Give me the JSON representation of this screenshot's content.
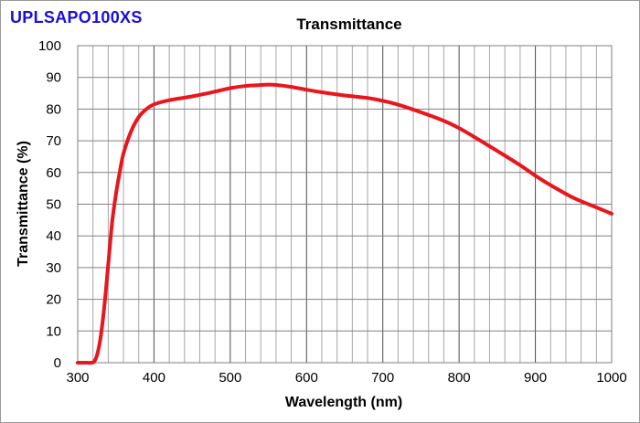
{
  "product": {
    "name": "UPLSAPO100XS",
    "color": "#1a0fd9"
  },
  "chart_data": {
    "type": "line",
    "title": "Transmittance",
    "xlabel": "Wavelength (nm)",
    "ylabel": "Transmittance (%)",
    "xlim": [
      300,
      1000
    ],
    "ylim": [
      0,
      100
    ],
    "x_ticks": [
      300,
      400,
      500,
      600,
      700,
      800,
      900,
      1000
    ],
    "y_ticks": [
      0,
      10,
      20,
      30,
      40,
      50,
      60,
      70,
      80,
      90,
      100
    ],
    "x_minor_step": 20,
    "y_minor_step": 10,
    "grid": true,
    "series": [
      {
        "name": "Transmittance",
        "color": "#e8161d",
        "x": [
          300,
          312,
          318,
          322,
          326,
          330,
          335,
          340,
          345,
          350,
          355,
          360,
          370,
          380,
          390,
          400,
          420,
          450,
          480,
          500,
          520,
          540,
          550,
          560,
          580,
          600,
          620,
          650,
          680,
          700,
          720,
          750,
          780,
          800,
          820,
          850,
          880,
          900,
          920,
          950,
          980,
          1000
        ],
        "y": [
          0,
          0,
          0,
          0.5,
          3,
          8,
          18,
          31,
          44,
          53,
          60,
          66,
          73,
          77.5,
          80,
          81.5,
          82.8,
          84,
          85.5,
          86.6,
          87.3,
          87.6,
          87.7,
          87.6,
          87,
          86.1,
          85.3,
          84.3,
          83.5,
          82.6,
          81.4,
          79,
          76.3,
          74,
          71.2,
          66.8,
          62.3,
          59,
          56,
          52,
          49,
          47
        ]
      }
    ]
  }
}
